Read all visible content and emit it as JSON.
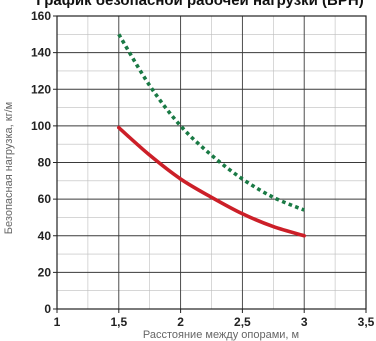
{
  "chart_data": {
    "type": "line",
    "title": "График безопасной рабочей нагрузки (ВРН)",
    "xlabel": "Расстояние между опорами, м",
    "ylabel": "Безопасная нагрузка, кг/м",
    "xlim": [
      1,
      3.5
    ],
    "ylim": [
      0,
      160
    ],
    "xticks": [
      "1",
      "1,5",
      "2",
      "2,5",
      "3",
      "3,5"
    ],
    "yticks": [
      "0",
      "20",
      "40",
      "60",
      "80",
      "100",
      "120",
      "140",
      "160"
    ],
    "grid": true,
    "series": [
      {
        "color": "#1a7a45",
        "style": "dotted",
        "x": [
          1.5,
          1.75,
          2.0,
          2.25,
          2.5,
          2.75,
          3.0
        ],
        "y": [
          150,
          122,
          100,
          84,
          71,
          61,
          54
        ]
      },
      {
        "color": "#cc1f28",
        "style": "solid",
        "x": [
          1.5,
          1.75,
          2.0,
          2.25,
          2.5,
          2.75,
          3.0
        ],
        "y": [
          99,
          84,
          71,
          61,
          52,
          45,
          40
        ]
      }
    ]
  }
}
